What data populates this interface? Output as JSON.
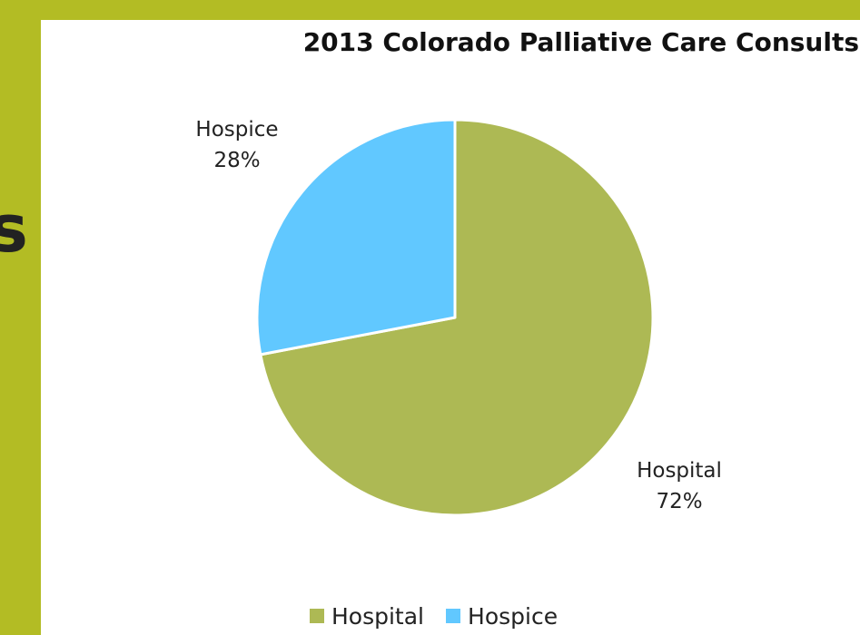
{
  "slide": {
    "edge_text": "s",
    "background_color": "#b3bc24"
  },
  "chart_data": {
    "type": "pie",
    "title": "2013 Colorado Palliative Care Consults",
    "categories": [
      "Hospital",
      "Hospice"
    ],
    "values": [
      72,
      28
    ],
    "unit": "%",
    "colors": [
      "#adb954",
      "#61c8ff"
    ],
    "slice_labels": [
      {
        "name": "Hospital",
        "percent": "72%"
      },
      {
        "name": "Hospice",
        "percent": "28%"
      }
    ],
    "legend": {
      "position": "bottom",
      "items": [
        {
          "label": "Hospital",
          "color": "#adb954"
        },
        {
          "label": "Hospice",
          "color": "#61c8ff"
        }
      ]
    }
  }
}
